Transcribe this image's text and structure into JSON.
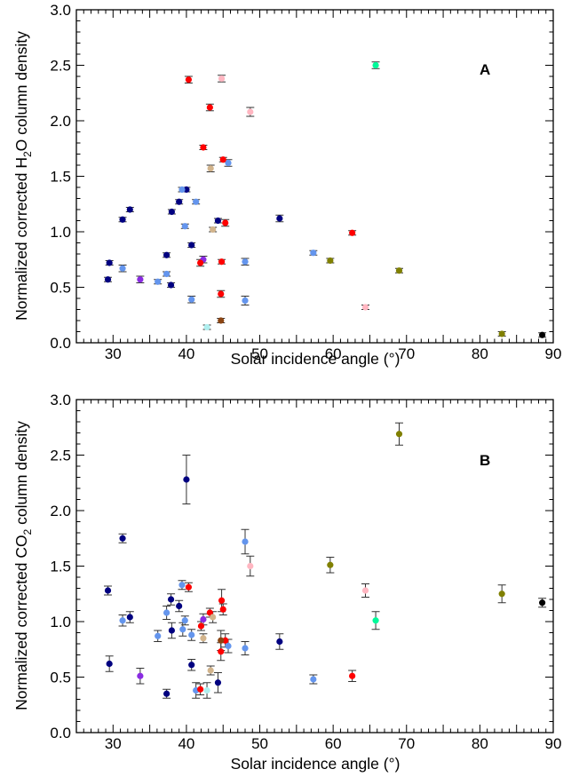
{
  "chart_data": [
    {
      "type": "scatter",
      "panel": "A",
      "xlabel": "Solar incidence angle (°)",
      "ylabel": {
        "pre": "Normalized corrected H",
        "sub": "2",
        "post": "O column density"
      },
      "xlim": [
        25,
        90
      ],
      "ylim": [
        0,
        3.0
      ],
      "xticks": [
        "30",
        "40",
        "50",
        "60",
        "70",
        "80",
        "90"
      ],
      "yticks": [
        "0.0",
        "0.5",
        "1.0",
        "1.5",
        "2.0",
        "2.5",
        "3.0"
      ],
      "grid": false,
      "points": [
        {
          "x": 29.3,
          "y": 0.57,
          "err": 0.02,
          "color": "#000080"
        },
        {
          "x": 29.5,
          "y": 0.72,
          "err": 0.02,
          "color": "#000080"
        },
        {
          "x": 31.3,
          "y": 1.11,
          "err": 0.02,
          "color": "#000080"
        },
        {
          "x": 32.3,
          "y": 1.2,
          "err": 0.02,
          "color": "#000080"
        },
        {
          "x": 37.3,
          "y": 0.79,
          "err": 0.02,
          "color": "#000080"
        },
        {
          "x": 37.9,
          "y": 0.52,
          "err": 0.02,
          "color": "#000080"
        },
        {
          "x": 38.0,
          "y": 1.18,
          "err": 0.02,
          "color": "#000080"
        },
        {
          "x": 39.0,
          "y": 1.27,
          "err": 0.02,
          "color": "#000080"
        },
        {
          "x": 40.0,
          "y": 1.38,
          "err": 0.02,
          "color": "#000080"
        },
        {
          "x": 40.7,
          "y": 0.88,
          "err": 0.02,
          "color": "#000080"
        },
        {
          "x": 44.3,
          "y": 1.1,
          "err": 0.02,
          "color": "#000080"
        },
        {
          "x": 52.7,
          "y": 1.12,
          "err": 0.03,
          "color": "#000080"
        },
        {
          "x": 31.3,
          "y": 0.67,
          "err": 0.03,
          "color": "#6495ED"
        },
        {
          "x": 36.1,
          "y": 0.55,
          "err": 0.02,
          "color": "#6495ED"
        },
        {
          "x": 37.3,
          "y": 0.62,
          "err": 0.02,
          "color": "#6495ED"
        },
        {
          "x": 39.4,
          "y": 1.38,
          "err": 0.02,
          "color": "#6495ED"
        },
        {
          "x": 39.8,
          "y": 1.05,
          "err": 0.02,
          "color": "#6495ED"
        },
        {
          "x": 40.7,
          "y": 0.39,
          "err": 0.03,
          "color": "#6495ED"
        },
        {
          "x": 41.3,
          "y": 1.27,
          "err": 0.02,
          "color": "#6495ED"
        },
        {
          "x": 45.7,
          "y": 1.62,
          "err": 0.03,
          "color": "#6495ED"
        },
        {
          "x": 48.0,
          "y": 0.73,
          "err": 0.03,
          "color": "#6495ED"
        },
        {
          "x": 48.0,
          "y": 0.38,
          "err": 0.04,
          "color": "#6495ED"
        },
        {
          "x": 57.3,
          "y": 0.81,
          "err": 0.02,
          "color": "#6495ED"
        },
        {
          "x": 33.7,
          "y": 0.57,
          "err": 0.03,
          "color": "#8A2BE2"
        },
        {
          "x": 42.3,
          "y": 0.75,
          "err": 0.03,
          "color": "#8A2BE2"
        },
        {
          "x": 40.3,
          "y": 2.37,
          "err": 0.03,
          "color": "#FF0000"
        },
        {
          "x": 42.3,
          "y": 1.76,
          "err": 0.02,
          "color": "#FF0000"
        },
        {
          "x": 41.9,
          "y": 0.72,
          "err": 0.03,
          "color": "#FF0000"
        },
        {
          "x": 43.2,
          "y": 2.12,
          "err": 0.03,
          "color": "#FF0000"
        },
        {
          "x": 44.8,
          "y": 0.73,
          "err": 0.02,
          "color": "#FF0000"
        },
        {
          "x": 44.7,
          "y": 0.44,
          "err": 0.03,
          "color": "#FF0000"
        },
        {
          "x": 45.0,
          "y": 1.65,
          "err": 0.02,
          "color": "#FF0000"
        },
        {
          "x": 45.3,
          "y": 1.08,
          "err": 0.03,
          "color": "#FF0000"
        },
        {
          "x": 62.6,
          "y": 0.99,
          "err": 0.02,
          "color": "#FF0000"
        },
        {
          "x": 44.8,
          "y": 2.38,
          "err": 0.03,
          "color": "#FFB6C1"
        },
        {
          "x": 48.7,
          "y": 2.08,
          "err": 0.04,
          "color": "#FFB6C1"
        },
        {
          "x": 64.4,
          "y": 0.32,
          "err": 0.02,
          "color": "#FFB6C1"
        },
        {
          "x": 43.3,
          "y": 1.57,
          "err": 0.03,
          "color": "#D2B48C"
        },
        {
          "x": 43.6,
          "y": 1.02,
          "err": 0.02,
          "color": "#D2B48C"
        },
        {
          "x": 42.8,
          "y": 0.14,
          "err": 0.02,
          "color": "#AFEEEE"
        },
        {
          "x": 44.7,
          "y": 0.2,
          "err": 0.02,
          "color": "#8B4513"
        },
        {
          "x": 59.6,
          "y": 0.74,
          "err": 0.02,
          "color": "#808000"
        },
        {
          "x": 69.0,
          "y": 0.65,
          "err": 0.02,
          "color": "#808000"
        },
        {
          "x": 83.0,
          "y": 0.08,
          "err": 0.02,
          "color": "#808000"
        },
        {
          "x": 65.8,
          "y": 2.5,
          "err": 0.03,
          "color": "#00FA9A"
        },
        {
          "x": 88.5,
          "y": 0.07,
          "err": 0.02,
          "color": "#000000"
        }
      ]
    },
    {
      "type": "scatter",
      "panel": "B",
      "xlabel": "Solar incidence angle (°)",
      "ylabel": {
        "pre": "Normalized corrected CO",
        "sub": "2",
        "post": " column density"
      },
      "xlim": [
        25,
        90
      ],
      "ylim": [
        0,
        3.0
      ],
      "xticks": [
        "30",
        "40",
        "50",
        "60",
        "70",
        "80",
        "90"
      ],
      "yticks": [
        "0.0",
        "0.5",
        "1.0",
        "1.5",
        "2.0",
        "2.5",
        "3.0"
      ],
      "grid": false,
      "points": [
        {
          "x": 29.3,
          "y": 1.28,
          "err": 0.04,
          "color": "#000080"
        },
        {
          "x": 29.5,
          "y": 0.62,
          "err": 0.07,
          "color": "#000080"
        },
        {
          "x": 31.3,
          "y": 1.75,
          "err": 0.04,
          "color": "#000080"
        },
        {
          "x": 32.3,
          "y": 1.04,
          "err": 0.05,
          "color": "#000080"
        },
        {
          "x": 37.3,
          "y": 0.35,
          "err": 0.04,
          "color": "#000080"
        },
        {
          "x": 37.9,
          "y": 1.2,
          "err": 0.05,
          "color": "#000080"
        },
        {
          "x": 38.0,
          "y": 0.92,
          "err": 0.07,
          "color": "#000080"
        },
        {
          "x": 39.0,
          "y": 1.14,
          "err": 0.05,
          "color": "#000080"
        },
        {
          "x": 40.0,
          "y": 2.28,
          "err": 0.22,
          "color": "#000080"
        },
        {
          "x": 40.7,
          "y": 0.61,
          "err": 0.05,
          "color": "#000080"
        },
        {
          "x": 44.3,
          "y": 0.45,
          "err": 0.09,
          "color": "#000080"
        },
        {
          "x": 52.7,
          "y": 0.82,
          "err": 0.07,
          "color": "#000080"
        },
        {
          "x": 31.3,
          "y": 1.01,
          "err": 0.05,
          "color": "#6495ED"
        },
        {
          "x": 36.1,
          "y": 0.87,
          "err": 0.05,
          "color": "#6495ED"
        },
        {
          "x": 37.3,
          "y": 1.08,
          "err": 0.06,
          "color": "#6495ED"
        },
        {
          "x": 39.4,
          "y": 1.33,
          "err": 0.04,
          "color": "#6495ED"
        },
        {
          "x": 39.8,
          "y": 1.01,
          "err": 0.04,
          "color": "#6495ED"
        },
        {
          "x": 39.5,
          "y": 0.93,
          "err": 0.06,
          "color": "#6495ED"
        },
        {
          "x": 40.7,
          "y": 0.88,
          "err": 0.05,
          "color": "#6495ED"
        },
        {
          "x": 41.3,
          "y": 0.38,
          "err": 0.07,
          "color": "#6495ED"
        },
        {
          "x": 45.7,
          "y": 0.78,
          "err": 0.06,
          "color": "#6495ED"
        },
        {
          "x": 48.0,
          "y": 1.72,
          "err": 0.11,
          "color": "#6495ED"
        },
        {
          "x": 48.0,
          "y": 0.76,
          "err": 0.06,
          "color": "#6495ED"
        },
        {
          "x": 57.3,
          "y": 0.48,
          "err": 0.04,
          "color": "#6495ED"
        },
        {
          "x": 33.7,
          "y": 0.51,
          "err": 0.07,
          "color": "#8A2BE2"
        },
        {
          "x": 42.3,
          "y": 1.02,
          "err": 0.05,
          "color": "#8A2BE2"
        },
        {
          "x": 40.3,
          "y": 1.31,
          "err": 0.04,
          "color": "#FF0000"
        },
        {
          "x": 41.9,
          "y": 0.39,
          "err": 0.05,
          "color": "#FF0000"
        },
        {
          "x": 42.0,
          "y": 0.96,
          "err": 0.04,
          "color": "#FF0000"
        },
        {
          "x": 43.2,
          "y": 1.08,
          "err": 0.04,
          "color": "#FF0000"
        },
        {
          "x": 44.8,
          "y": 1.19,
          "err": 0.1,
          "color": "#FF0000"
        },
        {
          "x": 44.7,
          "y": 0.73,
          "err": 0.08,
          "color": "#FF0000"
        },
        {
          "x": 45.0,
          "y": 1.11,
          "err": 0.05,
          "color": "#FF0000"
        },
        {
          "x": 45.3,
          "y": 0.83,
          "err": 0.06,
          "color": "#FF0000"
        },
        {
          "x": 62.6,
          "y": 0.51,
          "err": 0.05,
          "color": "#FF0000"
        },
        {
          "x": 48.7,
          "y": 1.5,
          "err": 0.09,
          "color": "#FFB6C1"
        },
        {
          "x": 64.4,
          "y": 1.28,
          "err": 0.06,
          "color": "#FFB6C1"
        },
        {
          "x": 42.3,
          "y": 0.85,
          "err": 0.04,
          "color": "#D2B48C"
        },
        {
          "x": 43.3,
          "y": 0.56,
          "err": 0.04,
          "color": "#D2B48C"
        },
        {
          "x": 43.6,
          "y": 1.04,
          "err": 0.05,
          "color": "#D2B48C"
        },
        {
          "x": 42.8,
          "y": 0.38,
          "err": 0.07,
          "color": "#AFEEEE"
        },
        {
          "x": 44.7,
          "y": 0.83,
          "err": 0.09,
          "color": "#8B4513"
        },
        {
          "x": 59.6,
          "y": 1.51,
          "err": 0.07,
          "color": "#808000"
        },
        {
          "x": 69.0,
          "y": 2.69,
          "err": 0.1,
          "color": "#808000"
        },
        {
          "x": 83.0,
          "y": 1.25,
          "err": 0.08,
          "color": "#808000"
        },
        {
          "x": 65.8,
          "y": 1.01,
          "err": 0.08,
          "color": "#00FA9A"
        },
        {
          "x": 88.5,
          "y": 1.17,
          "err": 0.04,
          "color": "#000000"
        }
      ]
    }
  ]
}
